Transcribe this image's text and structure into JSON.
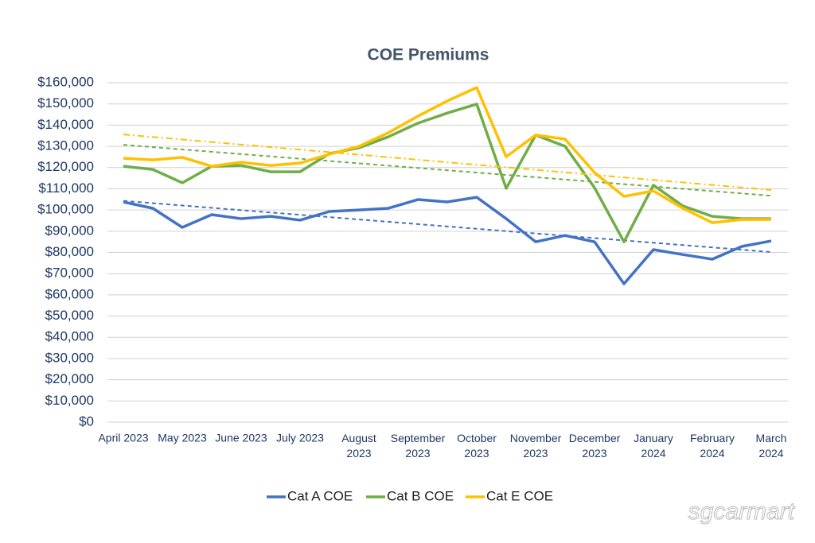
{
  "chart_data": {
    "type": "line",
    "title": "COE Premiums",
    "categories": [
      "April 2023",
      null,
      "May 2023",
      null,
      "June 2023",
      null,
      "July 2023",
      null,
      "August 2023",
      null,
      "September 2023",
      null,
      "October 2023",
      null,
      "November 2023",
      null,
      "December 2023",
      null,
      "January 2024",
      null,
      "February 2024",
      null,
      "March 2024"
    ],
    "series": [
      {
        "name": "Cat A COE",
        "color": "#4472c4",
        "trendline": "dashed",
        "values": [
          103800,
          100800,
          91800,
          97800,
          95900,
          97000,
          95200,
          99300,
          100000,
          100800,
          104900,
          103800,
          106000,
          95900,
          85000,
          88000,
          85000,
          65200,
          81300,
          79000,
          76800,
          82800,
          85400
        ]
      },
      {
        "name": "Cat B COE",
        "color": "#70ad47",
        "trendline": "dashed",
        "values": [
          120600,
          119100,
          112800,
          120600,
          121000,
          118000,
          118000,
          126600,
          129300,
          134500,
          140900,
          145700,
          149900,
          110200,
          135300,
          130000,
          110500,
          85000,
          111700,
          101900,
          97000,
          95900,
          95900
        ]
      },
      {
        "name": "Cat E COE",
        "color": "#ffc000",
        "trendline": "dashdot",
        "values": [
          124400,
          123600,
          124800,
          120600,
          122500,
          121000,
          122100,
          126300,
          130000,
          136400,
          144200,
          151400,
          157700,
          125100,
          135300,
          133400,
          117600,
          106400,
          109000,
          100800,
          94000,
          95500,
          95500
        ]
      }
    ],
    "ylim": [
      0,
      160000
    ],
    "yticks": [
      {
        "value": 0,
        "label": "$0"
      },
      {
        "value": 10000,
        "label": "$10,000"
      },
      {
        "value": 20000,
        "label": "$20,000"
      },
      {
        "value": 30000,
        "label": "$30,000"
      },
      {
        "value": 40000,
        "label": "$40,000"
      },
      {
        "value": 50000,
        "label": "$50,000"
      },
      {
        "value": 60000,
        "label": "$60,000"
      },
      {
        "value": 70000,
        "label": "$70,000"
      },
      {
        "value": 80000,
        "label": "$80,000"
      },
      {
        "value": 90000,
        "label": "$90,000"
      },
      {
        "value": 100000,
        "label": "$100,000"
      },
      {
        "value": 110000,
        "label": "$110,000"
      },
      {
        "value": 120000,
        "label": "$120,000"
      },
      {
        "value": 130000,
        "label": "$130,000"
      },
      {
        "value": 140000,
        "label": "$140,000"
      },
      {
        "value": 150000,
        "label": "$150,000"
      },
      {
        "value": 160000,
        "label": "$160,000"
      }
    ],
    "grid": true,
    "legend": "bottom",
    "watermark": "sgcarmart"
  }
}
